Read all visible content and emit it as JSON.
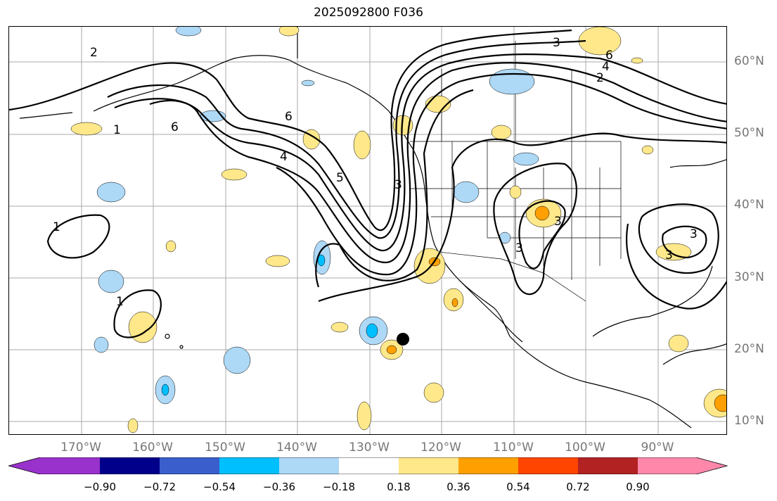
{
  "title": "2025092800 F036",
  "lat_labels": [
    "60°N",
    "50°N",
    "40°N",
    "30°N",
    "20°N",
    "10°N"
  ],
  "lon_labels": [
    "170°W",
    "160°W",
    "150°W",
    "140°W",
    "130°W",
    "120°W",
    "110°W",
    "100°W",
    "90°W"
  ],
  "contour_labels": [
    "2",
    "6",
    "1",
    "6",
    "4",
    "5",
    "3",
    "1",
    "1",
    "3",
    "3",
    "6",
    "4",
    "2",
    "3",
    "3",
    "3"
  ],
  "colorbar": {
    "ticks": [
      "−0.90",
      "−0.72",
      "−0.54",
      "−0.36",
      "−0.18",
      "0.18",
      "0.36",
      "0.54",
      "0.72",
      "0.90"
    ],
    "colors": [
      "#9932cc",
      "#00008b",
      "#3a5fcd",
      "#00bfff",
      "#add8f6",
      "#ffffff",
      "#ffe88a",
      "#ffa000",
      "#ff4500",
      "#b22222",
      "#ff88aa"
    ]
  },
  "colors": {
    "positive_light": "#ffe88a",
    "positive_mid": "#ffa000",
    "negative_light": "#add8f6",
    "negative_mid": "#00bfff",
    "contour": "#000000",
    "grid": "#aaaaaa"
  }
}
